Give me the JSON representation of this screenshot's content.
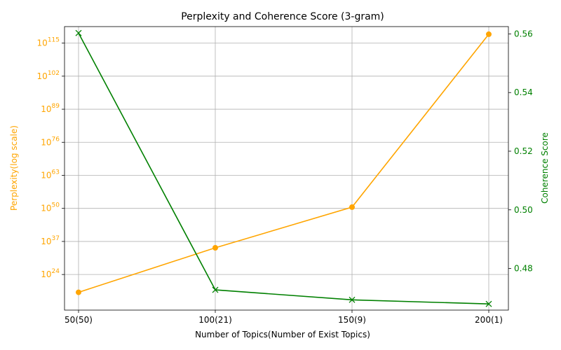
{
  "chart_data": {
    "type": "line",
    "title": "Perplexity and Coherence Score (3-gram)",
    "xlabel": "Number of Topics(Number of Exist Topics)",
    "categories": [
      "50(50)",
      "100(21)",
      "150(9)",
      "200(1)"
    ],
    "left_axis": {
      "label": "Perplexity(log scale)",
      "scale": "log",
      "color": "#FFA500",
      "ticks": [
        {
          "exp": 24,
          "base": "10",
          "sup": "24"
        },
        {
          "exp": 37,
          "base": "10",
          "sup": "37"
        },
        {
          "exp": 50,
          "base": "10",
          "sup": "50"
        },
        {
          "exp": 63,
          "base": "10",
          "sup": "63"
        },
        {
          "exp": 76,
          "base": "10",
          "sup": "76"
        },
        {
          "exp": 89,
          "base": "10",
          "sup": "89"
        },
        {
          "exp": 102,
          "base": "10",
          "sup": "102"
        },
        {
          "exp": 115,
          "base": "10",
          "sup": "115"
        }
      ],
      "ylim_exp": [
        10,
        121.5
      ]
    },
    "right_axis": {
      "label": "Coherence Score",
      "scale": "linear",
      "color": "#008000",
      "ticks": [
        "0.48",
        "0.50",
        "0.52",
        "0.54",
        "0.56"
      ],
      "ylim": [
        0.4658,
        0.5625
      ]
    },
    "series": [
      {
        "name": "",
        "axis": "left",
        "color": "#FFA500",
        "marker": "circle",
        "log10_values": [
          17,
          34.5,
          50.5,
          118.5
        ]
      },
      {
        "name": "",
        "axis": "right",
        "color": "#008000",
        "marker": "x",
        "values": [
          0.5603,
          0.4727,
          0.4693,
          0.4679
        ]
      }
    ],
    "grid": true
  }
}
